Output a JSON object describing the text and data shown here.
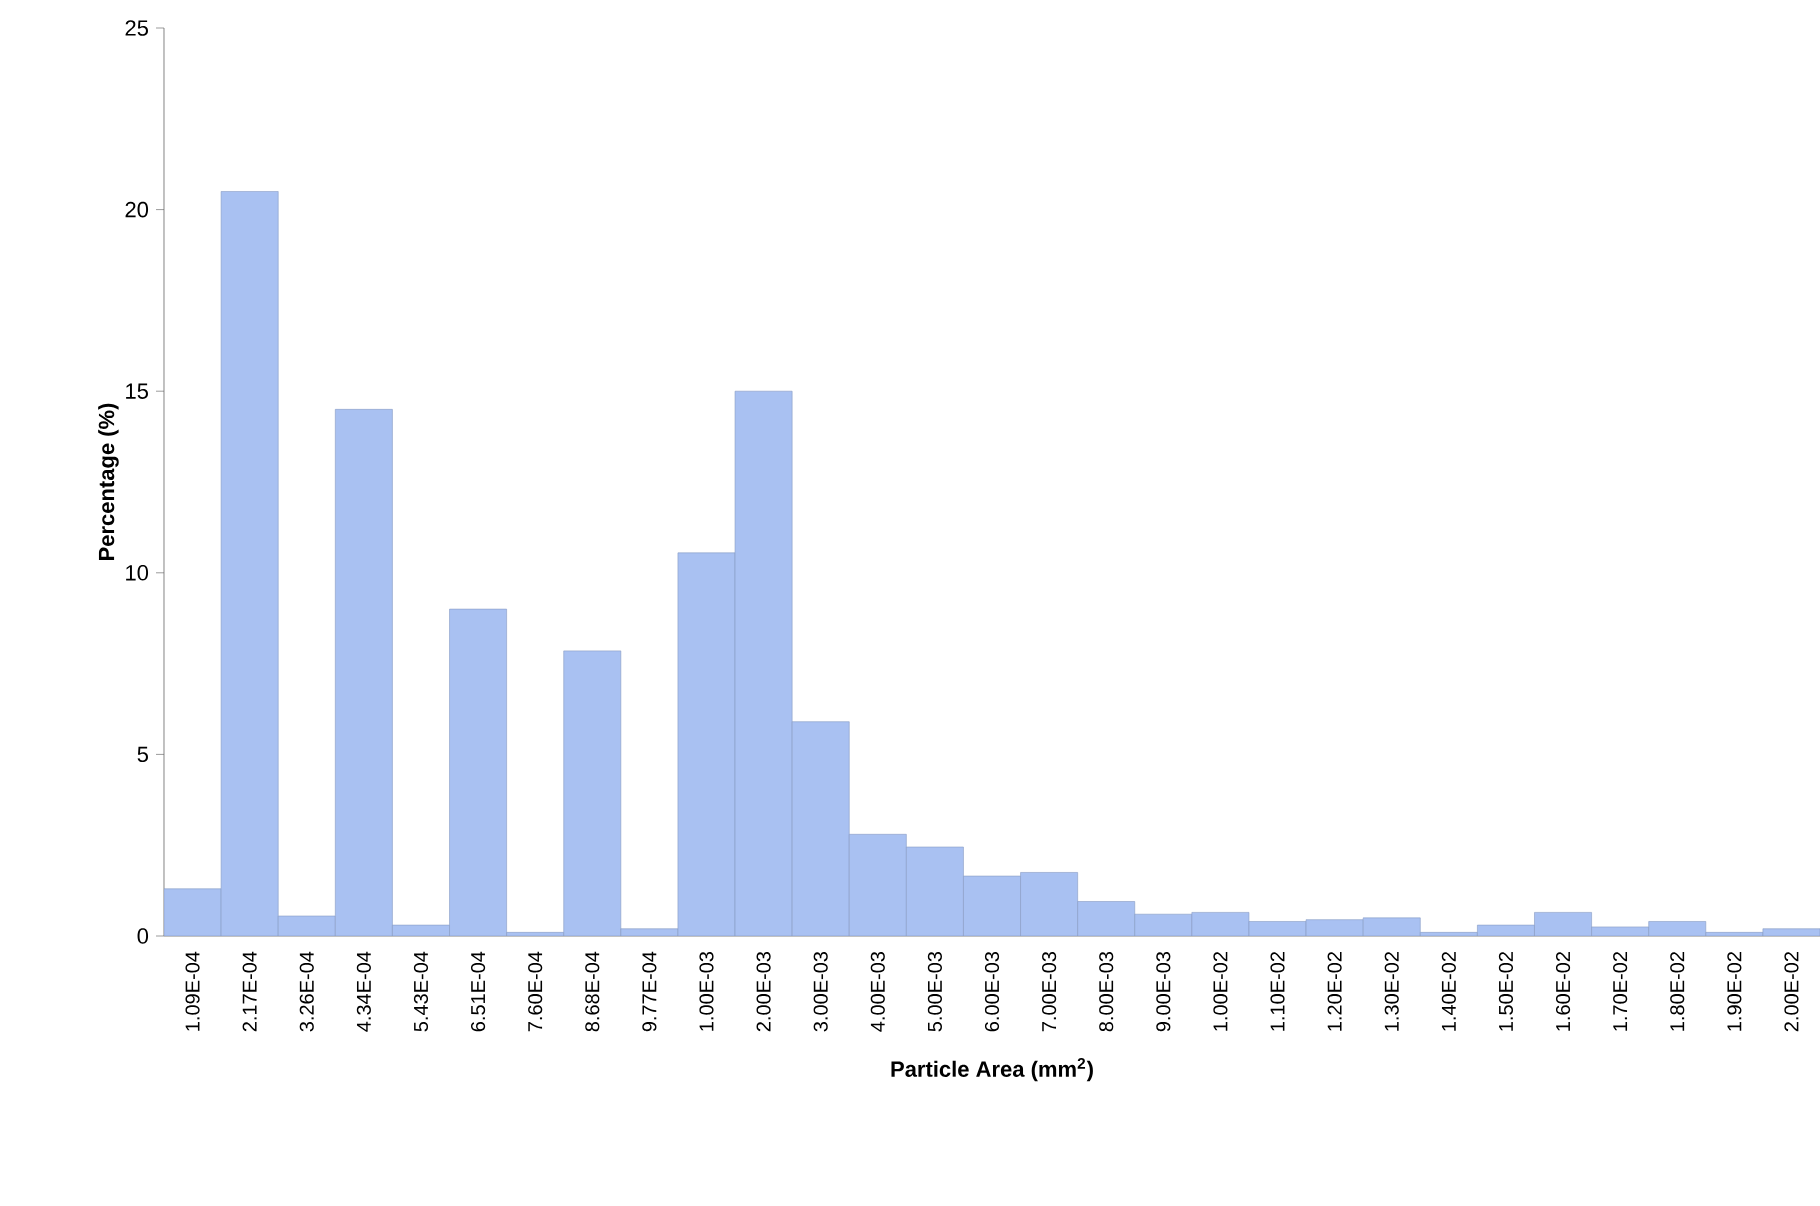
{
  "chart_data": {
    "type": "bar",
    "xlabel": "Particle Area (mm$^{2}$)",
    "ylabel": "Percentage (%)",
    "categories": [
      "1.09E-04",
      "2.17E-04",
      "3.26E-04",
      "4.34E-04",
      "5.43E-04",
      "6.51E-04",
      "7.60E-04",
      "8.68E-04",
      "9.77E-04",
      "1.00E-03",
      "2.00E-03",
      "3.00E-03",
      "4.00E-03",
      "5.00E-03",
      "6.00E-03",
      "7.00E-03",
      "8.00E-03",
      "9.00E-03",
      "1.00E-02",
      "1.10E-02",
      "1.20E-02",
      "1.30E-02",
      "1.40E-02",
      "1.50E-02",
      "1.60E-02",
      "1.70E-02",
      "1.80E-02",
      "1.90E-02",
      "2.00E-02"
    ],
    "values": [
      1.3,
      20.5,
      0.55,
      14.5,
      0.3,
      9.0,
      0.1,
      7.85,
      0.2,
      10.55,
      15.0,
      5.9,
      2.8,
      2.45,
      1.65,
      1.75,
      0.95,
      0.6,
      0.65,
      0.4,
      0.45,
      0.5,
      0.1,
      0.3,
      0.65,
      0.25,
      0.4,
      0.1,
      0.2
    ],
    "color": "#a9c1f2",
    "ylim": [
      0,
      25
    ],
    "yticks": [
      0,
      5,
      10,
      15,
      20,
      25
    ]
  }
}
